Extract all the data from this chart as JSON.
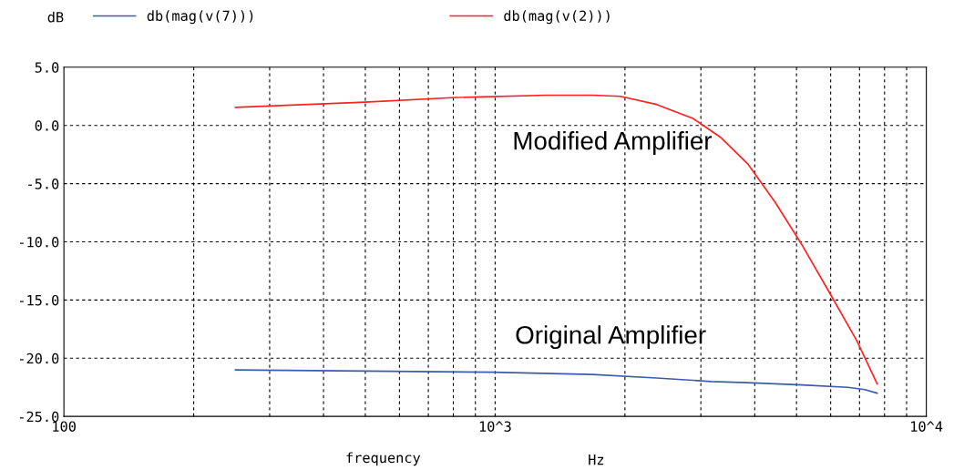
{
  "chart_data": {
    "type": "line",
    "ylabel": "dB",
    "xlabel": "frequency",
    "log": "x",
    "grid": true,
    "legend": "top",
    "line_style": "solid",
    "marker": "none",
    "xlim": [
      100,
      10000
    ],
    "ylim": [
      -25,
      5
    ],
    "xticks": [
      {
        "value": 100,
        "label": "100"
      },
      {
        "value": 200,
        "label": null
      },
      {
        "value": 300,
        "label": null
      },
      {
        "value": 400,
        "label": null
      },
      {
        "value": 500,
        "label": null
      },
      {
        "value": 600,
        "label": null
      },
      {
        "value": 700,
        "label": null
      },
      {
        "value": 800,
        "label": null
      },
      {
        "value": 900,
        "label": null
      },
      {
        "value": 1000,
        "label": "10^3"
      },
      {
        "value": 2000,
        "label": null
      },
      {
        "value": 3000,
        "label": null
      },
      {
        "value": 4000,
        "label": null
      },
      {
        "value": 5000,
        "label": null
      },
      {
        "value": 6000,
        "label": null
      },
      {
        "value": 7000,
        "label": null
      },
      {
        "value": 8000,
        "label": null
      },
      {
        "value": 9000,
        "label": null
      },
      {
        "value": 10000,
        "label": "10^4"
      }
    ],
    "yticks": [
      {
        "value": 5,
        "label": "5.0"
      },
      {
        "value": 0,
        "label": "0.0"
      },
      {
        "value": -5,
        "label": "-5.0"
      },
      {
        "value": -10,
        "label": "-10.0"
      },
      {
        "value": -15,
        "label": "-15.0"
      },
      {
        "value": -20,
        "label": "-20.0"
      },
      {
        "value": -25,
        "label": "-25.0"
      }
    ],
    "series": [
      {
        "name": "db(mag(v(7)))",
        "color": "#3b5bab",
        "x": [
          250,
          500,
          986,
          1683,
          2368,
          3170,
          3852,
          5155,
          6580,
          7200,
          7690
        ],
        "values": [
          -21.0,
          -21.1,
          -21.2,
          -21.4,
          -21.7,
          -22.0,
          -22.1,
          -22.3,
          -22.5,
          -22.7,
          -23.0
        ]
      },
      {
        "name": "db(mag(v(2)))",
        "color": "#ff2020",
        "x": [
          250,
          499,
          811,
          1318,
          1683,
          1950,
          2368,
          2875,
          3327,
          3852,
          4460,
          5155,
          5970,
          6900,
          7690
        ],
        "values": [
          1.55,
          2.0,
          2.4,
          2.6,
          2.6,
          2.5,
          1.8,
          0.6,
          -1.0,
          -3.3,
          -6.6,
          -10.3,
          -14.4,
          -18.5,
          -22.2
        ]
      }
    ],
    "annotations": [
      "Modified Amplifier",
      "Original Amplifier",
      "Hz"
    ]
  }
}
